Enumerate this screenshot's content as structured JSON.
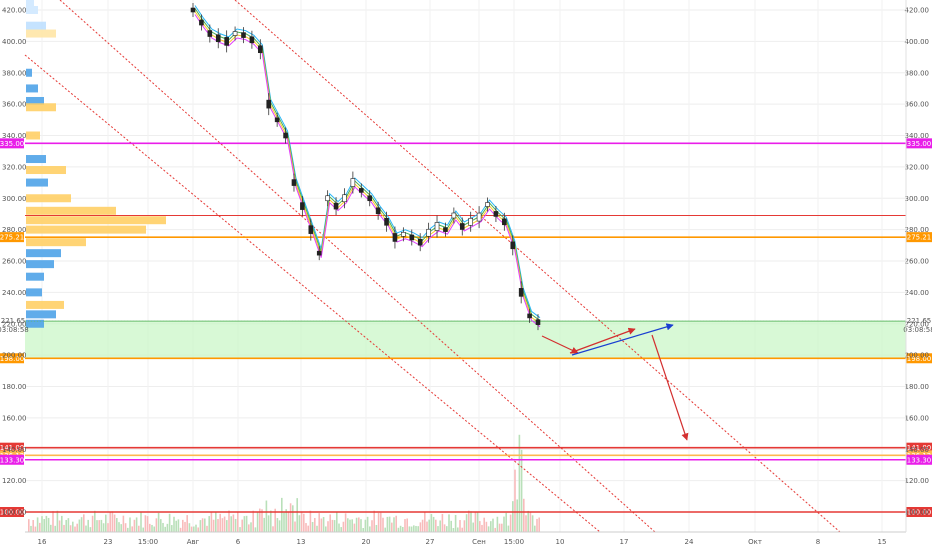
{
  "chart_data": {
    "type": "candlestick",
    "y_axis": {
      "ylim": [
        85,
        430
      ],
      "ticks": [
        420,
        400,
        380,
        360,
        340,
        320,
        300,
        280,
        260,
        240,
        220,
        200,
        180,
        160,
        140,
        120,
        100
      ],
      "tick_labels": [
        "420.00",
        "400.00",
        "380.00",
        "360.00",
        "340.00",
        "320.00",
        "300.00",
        "280.00",
        "260.00",
        "240.00",
        "220.00",
        "200.00",
        "180.00",
        "160.00",
        "140.00",
        "120.00",
        "100.00"
      ]
    },
    "x_axis": {
      "labels": [
        "16",
        "23",
        "15:00",
        "Авг",
        "6",
        "13",
        "20",
        "27",
        "Сен",
        "15:00",
        "10",
        "17",
        "24",
        "Окт",
        "8",
        "15"
      ]
    },
    "price": {
      "label": "221.65",
      "countdown": "03:08:58",
      "value": 221.65,
      "color": "#2e7d32"
    },
    "levels": [
      {
        "value": 335.0,
        "label": "335.00",
        "color": "#e91ee9"
      },
      {
        "value": 289.0,
        "label": "",
        "color": "#e53935"
      },
      {
        "value": 275.21,
        "label": "275.21",
        "color": "#ff9800"
      },
      {
        "value": 198.0,
        "label": "198.00",
        "color": "#ff9800"
      },
      {
        "value": 141.0,
        "label": "141.00",
        "color": "#e53935"
      },
      {
        "value": 136.12,
        "label": "136.12",
        "color": "#ffb74d"
      },
      {
        "value": 133.3,
        "label": "133.30",
        "color": "#e91ee9"
      },
      {
        "value": 100.0,
        "label": "100.00",
        "color": "#e53935"
      }
    ],
    "zone": {
      "from": 198,
      "to": 221.65,
      "color": "#c8f7c5"
    },
    "ohlc_trend": [
      420,
      412,
      405,
      402,
      400,
      405,
      404,
      401,
      395,
      360,
      350,
      340,
      310,
      295,
      280,
      265,
      300,
      295,
      300,
      310,
      305,
      300,
      292,
      285,
      275,
      277,
      275,
      272,
      278,
      282,
      280,
      289,
      282,
      285,
      288,
      296,
      290,
      285,
      270,
      240,
      225,
      221
    ]
  },
  "icons": {
    "grid": "light-gray",
    "trendline": "red-dotted"
  }
}
